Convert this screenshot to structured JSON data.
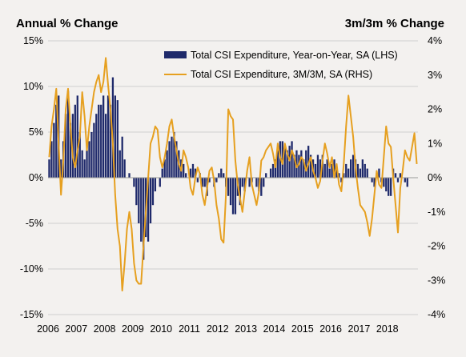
{
  "chart_data": {
    "type": "bar+line",
    "left_axis_title": "Annual % Change",
    "right_axis_title": "3m/3m % Change",
    "left_ticks": [
      "15%",
      "10%",
      "5%",
      "0%",
      "-5%",
      "-10%",
      "-15%"
    ],
    "right_ticks": [
      "4%",
      "3%",
      "2%",
      "1%",
      "0%",
      "-1%",
      "-2%",
      "-3%",
      "-4%"
    ],
    "x_ticks": [
      "2006",
      "2007",
      "2008",
      "2009",
      "2010",
      "2011",
      "2012",
      "2013",
      "2014",
      "2015",
      "2016",
      "2017",
      "2018"
    ],
    "ylim_left": [
      -15,
      15
    ],
    "ylim_right": [
      -4,
      4
    ],
    "grid": true,
    "legend_position": "top-right",
    "series": [
      {
        "name": "Total CSI Expenditure, Year-on-Year, SA (LHS)",
        "kind": "bar",
        "axis": "left",
        "color": "#1f2a6b",
        "start": "2006-01",
        "frequency": "monthly",
        "values": [
          2.0,
          4.0,
          6.0,
          8.0,
          9.0,
          2.0,
          4.0,
          7.0,
          9.5,
          6.0,
          7.0,
          8.0,
          9.0,
          5.0,
          3.0,
          2.0,
          3.0,
          4.0,
          5.0,
          6.0,
          7.0,
          8.0,
          8.0,
          9.0,
          7.0,
          9.0,
          8.0,
          11.0,
          9.0,
          8.5,
          3.0,
          4.5,
          2.0,
          0.0,
          0.5,
          0.0,
          -1.0,
          -3.0,
          -5.0,
          -7.0,
          -9.0,
          -6.5,
          -7.0,
          -5.0,
          -3.0,
          -1.5,
          0.0,
          -1.0,
          1.0,
          2.0,
          3.0,
          4.0,
          4.5,
          5.0,
          4.0,
          3.0,
          2.0,
          1.5,
          0.5,
          0.0,
          1.0,
          1.5,
          1.0,
          -0.5,
          0.5,
          -1.0,
          -1.0,
          -2.0,
          -0.5,
          0.0,
          -1.0,
          -0.5,
          0.5,
          1.0,
          0.5,
          -1.0,
          -2.0,
          -3.0,
          -4.0,
          -4.0,
          -2.0,
          -3.0,
          -1.0,
          -1.5,
          0.0,
          -1.0,
          -0.5,
          0.0,
          -1.0,
          -1.5,
          -2.0,
          -1.0,
          0.5,
          0.0,
          1.0,
          1.5,
          2.0,
          3.0,
          4.0,
          4.0,
          3.5,
          3.0,
          3.5,
          4.0,
          2.5,
          3.0,
          2.5,
          3.0,
          2.0,
          3.0,
          3.5,
          2.5,
          2.0,
          1.5,
          2.5,
          2.0,
          2.5,
          1.5,
          2.0,
          1.0,
          1.5,
          2.0,
          1.0,
          0.5,
          -0.5,
          0.5,
          1.5,
          1.0,
          2.0,
          2.5,
          2.0,
          1.5,
          1.0,
          2.0,
          1.5,
          1.0,
          0.0,
          -0.5,
          -1.0,
          0.5,
          1.0,
          -0.5,
          -1.0,
          -1.5,
          -2.0,
          -2.0,
          1.0,
          0.5,
          -0.5,
          0.5,
          0.0,
          -0.5,
          -1.0
        ]
      },
      {
        "name": "Total CSI Expenditure, 3M/3M, SA (RHS)",
        "kind": "line",
        "axis": "right",
        "color": "#e6a020",
        "start": "2006-01",
        "frequency": "monthly",
        "values": [
          0.6,
          1.5,
          2.0,
          2.6,
          1.0,
          -0.5,
          0.5,
          2.0,
          2.6,
          1.5,
          0.6,
          0.3,
          0.8,
          1.2,
          2.5,
          1.8,
          0.8,
          1.5,
          2.0,
          2.5,
          2.8,
          3.0,
          2.5,
          2.8,
          3.5,
          2.7,
          2.0,
          1.0,
          -0.5,
          -1.5,
          -2.0,
          -3.3,
          -2.5,
          -1.5,
          -1.0,
          -1.5,
          -2.5,
          -3.0,
          -3.1,
          -3.1,
          -2.0,
          -1.0,
          0.0,
          1.0,
          1.2,
          1.5,
          1.4,
          0.6,
          0.3,
          0.6,
          1.0,
          1.5,
          1.7,
          1.2,
          0.8,
          0.4,
          0.2,
          0.8,
          0.6,
          0.3,
          -0.3,
          -0.5,
          0.0,
          0.3,
          0.1,
          -0.5,
          -0.8,
          -0.3,
          0.2,
          0.3,
          -0.1,
          -0.8,
          -1.2,
          -1.8,
          -1.9,
          -0.5,
          2.0,
          1.8,
          1.7,
          0.5,
          -0.2,
          -0.6,
          -1.0,
          -0.4,
          0.2,
          0.6,
          -0.2,
          -0.5,
          -0.8,
          -0.4,
          0.5,
          0.6,
          0.8,
          0.9,
          1.0,
          0.7,
          0.3,
          1.0,
          0.6,
          0.4,
          1.0,
          0.7,
          0.5,
          0.8,
          0.6,
          0.3,
          0.4,
          0.6,
          0.5,
          0.2,
          0.4,
          0.6,
          0.2,
          0.0,
          -0.3,
          -0.1,
          0.5,
          1.0,
          0.7,
          0.3,
          0.6,
          0.0,
          0.4,
          -0.2,
          -0.4,
          0.4,
          1.5,
          2.4,
          1.8,
          1.2,
          0.3,
          -0.3,
          -0.8,
          -0.9,
          -1.0,
          -1.3,
          -1.7,
          -1.2,
          -0.5,
          0.2,
          -0.2,
          -0.3,
          0.6,
          1.5,
          1.0,
          0.9,
          0.0,
          -0.8,
          -1.6,
          -0.3,
          0.2,
          0.8,
          0.6,
          0.5,
          0.9,
          1.3,
          0.4
        ]
      }
    ]
  }
}
